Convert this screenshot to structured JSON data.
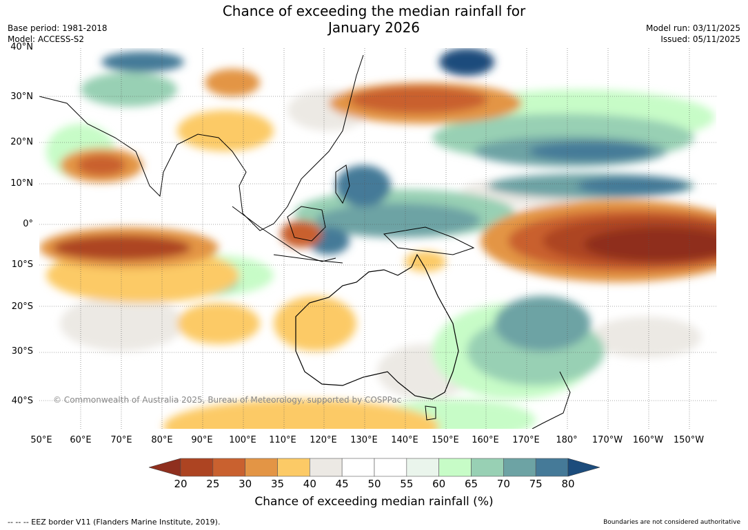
{
  "title_line1": "Chance of exceeding the median rainfall for",
  "title_line2": "January 2026",
  "base_period": "Base period: 1981-2018",
  "model": "Model: ACCESS-S2",
  "model_run": "Model run: 03/11/2025",
  "issued": "Issued: 05/11/2025",
  "lat_labels": [
    "40°N",
    "30°N",
    "20°N",
    "10°N",
    "0°",
    "10°S",
    "20°S",
    "30°S",
    "40°S"
  ],
  "lon_labels": [
    "50°E",
    "60°E",
    "70°E",
    "80°E",
    "90°E",
    "100°E",
    "110°E",
    "120°E",
    "130°E",
    "140°E",
    "150°E",
    "160°E",
    "170°E",
    "180°",
    "170°W",
    "160°W",
    "150°W"
  ],
  "colorbar": {
    "ticks": [
      "20",
      "25",
      "30",
      "35",
      "40",
      "45",
      "50",
      "55",
      "60",
      "65",
      "70",
      "75",
      "80"
    ],
    "colors": [
      "#8f2f1e",
      "#ad4422",
      "#c9612f",
      "#e39545",
      "#fcca66",
      "#ece9e4",
      "#ffffff",
      "#ffffff",
      "#eaf5ec",
      "#c7fcc7",
      "#98d0b4",
      "#6da3a4",
      "#457a98",
      "#1c4c7c"
    ],
    "label": "Chance of exceeding median rainfall (%)"
  },
  "copyright": "© Commonwealth of Australia 2025, Bureau of Meteorology, supported by COSPPac",
  "footer_left": "--  --  -- EEZ border V11 (Flanders Marine Institute, 2019).",
  "footer_right": "Boundaries are not considered authoritative"
}
